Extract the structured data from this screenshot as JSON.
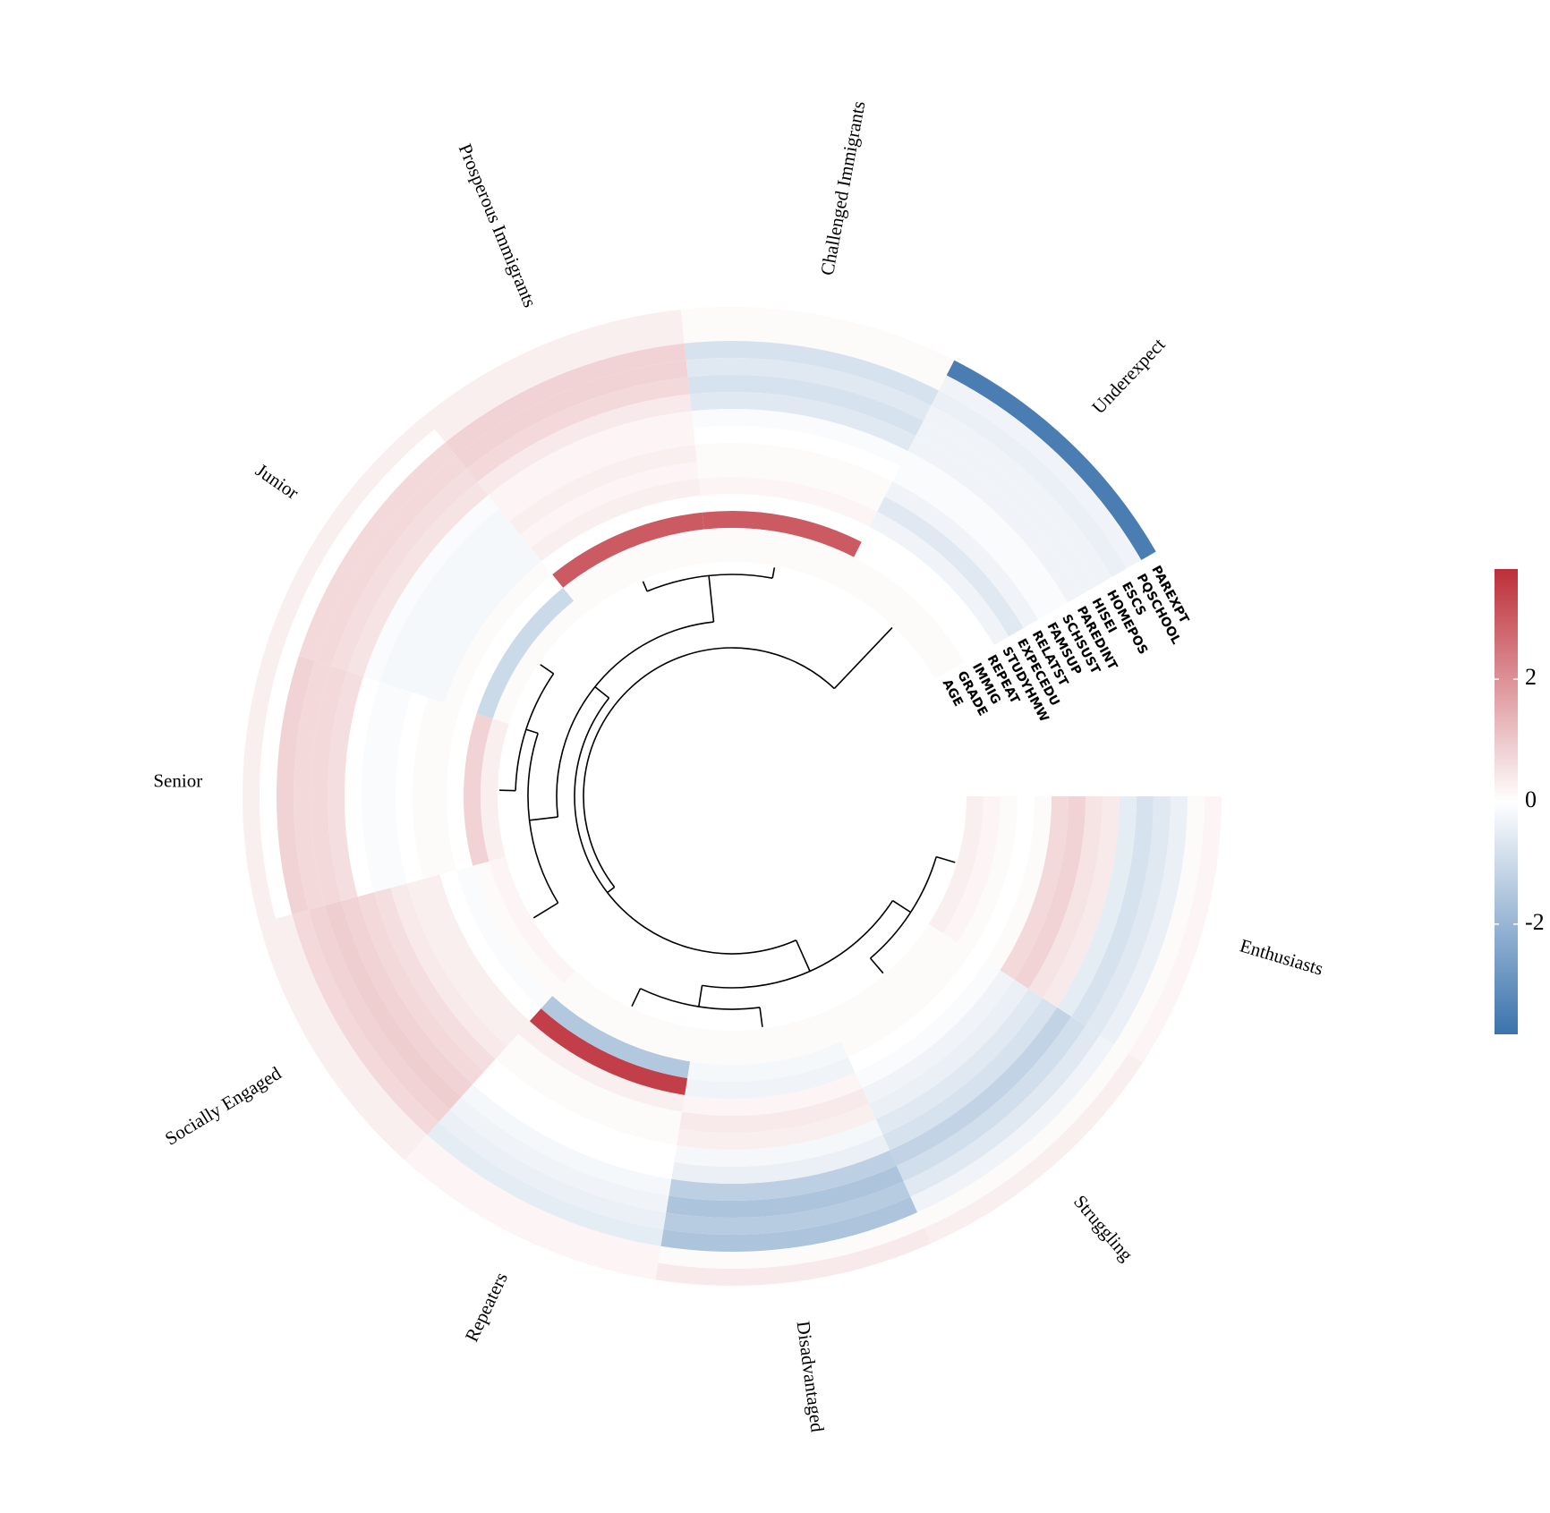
{
  "chart_data": {
    "type": "heatmap",
    "layout": "circular",
    "title": "",
    "clusters": [
      "Enthusiasts",
      "Struggling",
      "Disadvantaged",
      "Repeaters",
      "Socially Engaged",
      "Senior",
      "Junior",
      "Prosperous Immigrants",
      "Challenged Immigrants",
      "Underexpect"
    ],
    "variables": [
      "PAREXPT",
      "PQSCHOOL",
      "ESCS",
      "HOMEPOS",
      "HISEI",
      "PAREDINT",
      "SCHSUST",
      "FAMSUP",
      "RELATST",
      "EXPECEDU",
      "STUDYHMW",
      "REPEAT",
      "IMMIG",
      "GRADE",
      "AGE"
    ],
    "values": [
      [
        0.2,
        0.1,
        -0.4,
        -0.6,
        -0.8,
        -0.5,
        0.4,
        0.5,
        0.8,
        0.7,
        0.1,
        0.0,
        0.1,
        0.2,
        0.3
      ],
      [
        0.3,
        0.1,
        -0.3,
        -0.6,
        -0.9,
        -1.2,
        -0.8,
        -0.6,
        -0.4,
        -0.3,
        -0.1,
        0.0,
        0.1,
        0.1,
        0.1
      ],
      [
        0.4,
        0.1,
        -1.6,
        -1.4,
        -1.6,
        -1.3,
        -0.4,
        -0.2,
        0.3,
        0.4,
        0.2,
        -0.3,
        -0.2,
        0.1,
        0.1
      ],
      [
        0.2,
        0.2,
        -0.5,
        -0.4,
        -0.3,
        -0.2,
        0.0,
        0.0,
        0.1,
        0.1,
        0.3,
        3.5,
        -1.5,
        0.1,
        0.1
      ],
      [
        0.3,
        0.3,
        0.7,
        0.8,
        0.9,
        0.8,
        0.7,
        0.6,
        0.4,
        0.3,
        0.3,
        0.0,
        -0.1,
        0.1,
        0.2
      ],
      [
        0.3,
        0.0,
        0.8,
        0.7,
        0.7,
        0.6,
        0.0,
        -0.1,
        -0.1,
        0.0,
        0.1,
        0.1,
        0.0,
        0.8,
        0.3
      ],
      [
        0.3,
        0.0,
        0.7,
        0.7,
        0.6,
        0.5,
        -0.1,
        -0.2,
        -0.2,
        -0.2,
        -0.2,
        0.1,
        0.0,
        -1.0,
        0.1
      ],
      [
        0.3,
        0.3,
        0.8,
        0.8,
        0.7,
        0.4,
        0.2,
        0.2,
        0.3,
        0.2,
        0.3,
        0.0,
        3.0,
        0.1,
        0.1
      ],
      [
        0.1,
        0.1,
        -0.8,
        -0.6,
        -0.8,
        -0.6,
        -0.1,
        0.0,
        0.1,
        0.1,
        0.2,
        0.0,
        3.0,
        0.1,
        0.1
      ],
      [
        -3.5,
        -0.3,
        -0.4,
        -0.3,
        -0.3,
        -0.3,
        -0.1,
        -0.1,
        -0.3,
        -0.6,
        -0.3,
        0.0,
        0.0,
        0.1,
        0.1
      ]
    ],
    "colorscale": {
      "low": "#3b73ad",
      "mid": "#ffffff",
      "high": "#bd2e38",
      "min": -3.8,
      "max": 3.8
    },
    "colorbar_ticks": [
      2,
      0,
      -2
    ],
    "colorbar_tick_labels": [
      "2",
      "0",
      "-2"
    ],
    "dendrogram": true
  }
}
